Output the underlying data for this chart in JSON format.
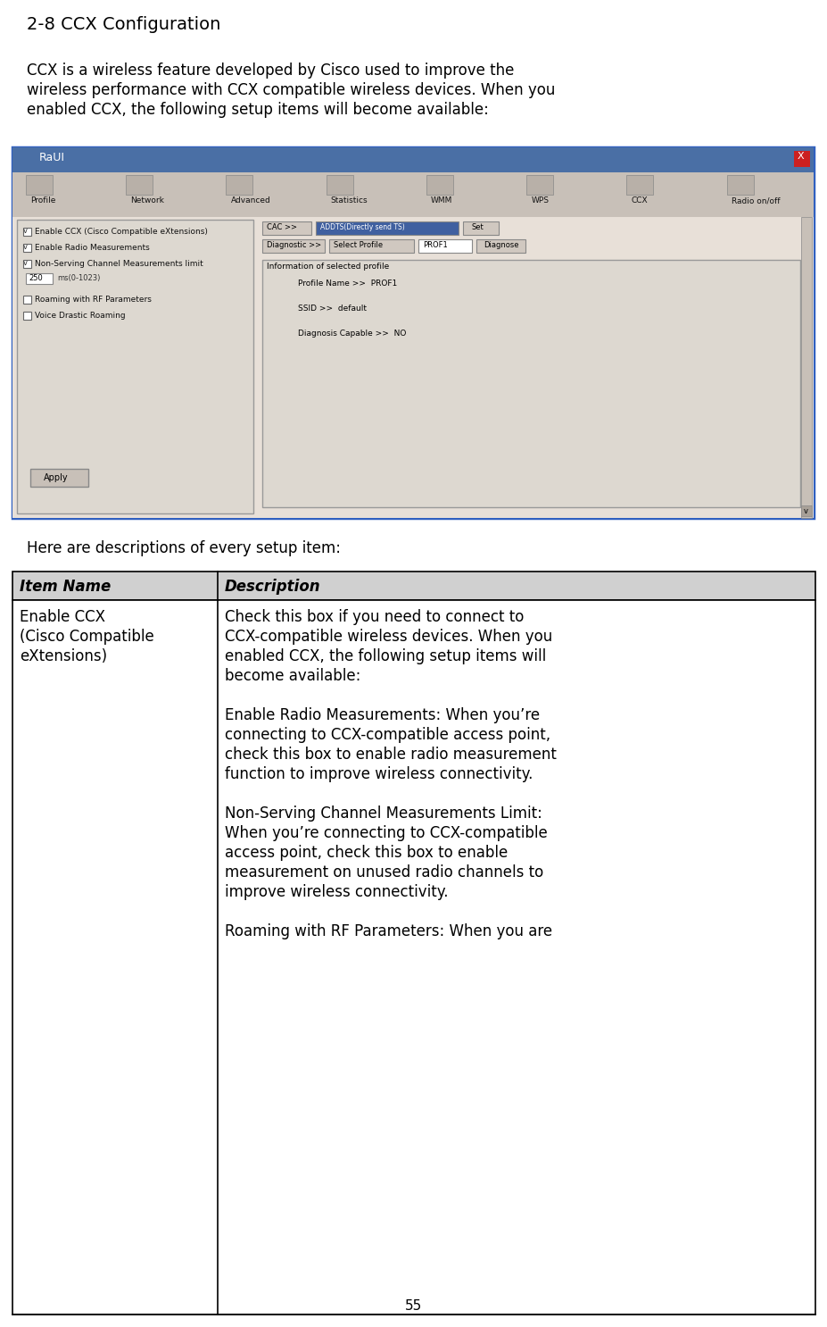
{
  "title": "2-8 CCX Configuration",
  "intro_text": "CCX is a wireless feature developed by Cisco used to improve the\nwireless performance with CCX compatible wireless devices. When you\nenabled CCX, the following setup items will become available:",
  "here_text": "Here are descriptions of every setup item:",
  "table_header": [
    "Item Name",
    "Description"
  ],
  "table_col1": "Enable CCX\n(Cisco Compatible\neXtensions)",
  "table_col2": "Check this box if you need to connect to\nCCX-compatible wireless devices. When you\nenabled CCX, the following setup items will\nbecome available:\n\nEnable Radio Measurements: When you’re\nconnecting to CCX-compatible access point,\ncheck this box to enable radio measurement\nfunction to improve wireless connectivity.\n\nNon-Serving Channel Measurements Limit:\nWhen you’re connecting to CCX-compatible\naccess point, check this box to enable\nmeasurement on unused radio channels to\nimprove wireless connectivity.\n\nRoaming with RF Parameters: When you are",
  "page_number": "55",
  "bg_color": "#ffffff",
  "text_color": "#000000",
  "table_header_bg": "#d0d0d0",
  "table_border_color": "#000000",
  "title_fontsize": 14,
  "body_fontsize": 12,
  "header_fontsize": 12,
  "screenshot_border_color": "#3060c0"
}
